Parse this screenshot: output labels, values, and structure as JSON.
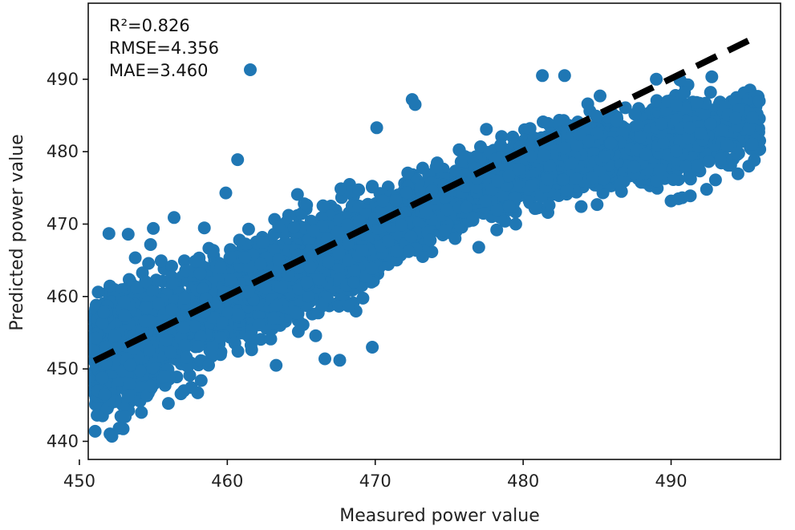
{
  "chart_data": {
    "type": "scatter",
    "xlabel": "Measured power value",
    "ylabel": "Predicted power value",
    "xlim": [
      450.6,
      497.4
    ],
    "ylim": [
      437.5,
      500.5
    ],
    "xticks": [
      450,
      460,
      470,
      480,
      490
    ],
    "yticks": [
      440,
      450,
      460,
      470,
      480,
      490
    ],
    "grid": false,
    "marker_color": "#1f77b4",
    "fit_line_color": "#000000",
    "fit_line_style": "dashed",
    "annotations": [
      "R²=0.826",
      "RMSE=4.356",
      "MAE=3.460"
    ],
    "legend_marker": "circle",
    "legend_placement": "top-left",
    "fit_line": {
      "x": [
        451,
        496
      ],
      "y": [
        451.1,
        496.1
      ]
    },
    "outliers": [
      {
        "x": 459.9,
        "y": 474.3
      },
      {
        "x": 460.7,
        "y": 478.9
      },
      {
        "x": 463.3,
        "y": 450.5
      },
      {
        "x": 466.6,
        "y": 451.4
      },
      {
        "x": 467.6,
        "y": 451.2
      },
      {
        "x": 469.8,
        "y": 453.0
      },
      {
        "x": 470.1,
        "y": 483.3
      },
      {
        "x": 472.5,
        "y": 487.2
      },
      {
        "x": 472.7,
        "y": 486.5
      },
      {
        "x": 477.0,
        "y": 466.8
      },
      {
        "x": 479.5,
        "y": 470.0
      },
      {
        "x": 481.3,
        "y": 490.5
      },
      {
        "x": 482.8,
        "y": 490.5
      },
      {
        "x": 485.2,
        "y": 487.7
      },
      {
        "x": 485.0,
        "y": 472.7
      },
      {
        "x": 490.0,
        "y": 473.2
      },
      {
        "x": 490.5,
        "y": 473.5
      },
      {
        "x": 491.3,
        "y": 473.9
      },
      {
        "x": 492.4,
        "y": 474.8
      },
      {
        "x": 493.0,
        "y": 476.1
      },
      {
        "x": 490.6,
        "y": 489.9
      },
      {
        "x": 489.0,
        "y": 490.0
      },
      {
        "x": 452.2,
        "y": 440.7
      },
      {
        "x": 453.1,
        "y": 443.4
      },
      {
        "x": 451.2,
        "y": 443.6
      },
      {
        "x": 452.0,
        "y": 468.7
      },
      {
        "x": 453.3,
        "y": 468.6
      },
      {
        "x": 455.0,
        "y": 469.4
      },
      {
        "x": 456.4,
        "y": 470.9
      },
      {
        "x": 493.8,
        "y": 480.8
      },
      {
        "x": 495.5,
        "y": 484.7
      },
      {
        "x": 488.3,
        "y": 479.6
      },
      {
        "x": 458.0,
        "y": 446.7
      },
      {
        "x": 475.4,
        "y": 468.0
      }
    ]
  }
}
